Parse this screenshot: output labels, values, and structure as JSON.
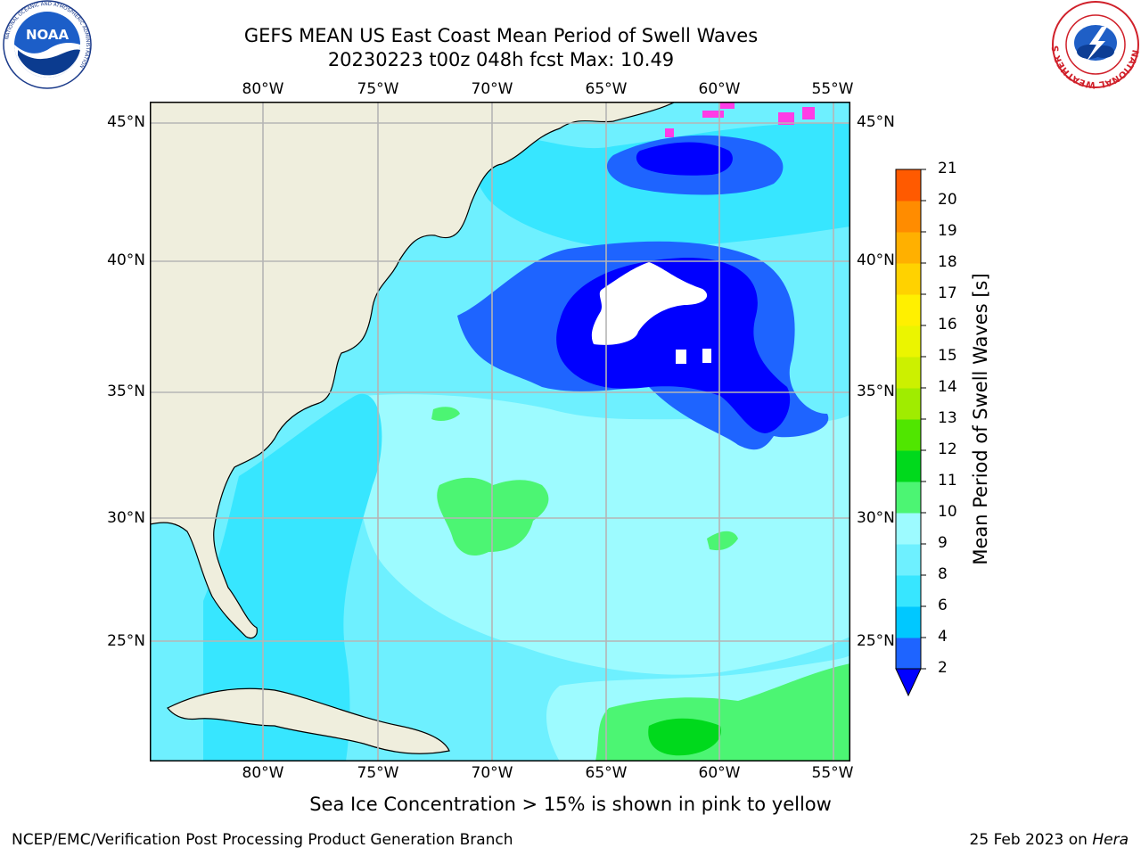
{
  "title": {
    "line1": "GEFS MEAN US East Coast Mean Period of Swell Waves",
    "line2": "20230223 t00z 048h fcst   Max: 10.49"
  },
  "map": {
    "lon_ticks": [
      "80°W",
      "75°W",
      "70°W",
      "65°W",
      "60°W",
      "55°W"
    ],
    "lat_ticks": [
      "45°N",
      "40°N",
      "35°N",
      "30°N",
      "25°N"
    ],
    "grid": true,
    "land_color": "#efeedd",
    "region": "US East Coast / Western North Atlantic"
  },
  "colorbar": {
    "label": "Mean Period of Swell Waves [s]",
    "ticks": [
      "2",
      "4",
      "6",
      "8",
      "9",
      "10",
      "11",
      "12",
      "13",
      "14",
      "15",
      "16",
      "17",
      "18",
      "19",
      "20",
      "21"
    ],
    "colors": [
      "#1e64ff",
      "#00c8ff",
      "#37e6ff",
      "#6ef0ff",
      "#9dfbff",
      "#4cf573",
      "#00d91c",
      "#50e600",
      "#a0ec00",
      "#ccf000",
      "#ebf500",
      "#fff000",
      "#ffd200",
      "#ffb000",
      "#ff8c00",
      "#ff5a00",
      "#ff2a00",
      "#ff0000"
    ],
    "extend_color": "#0000ff"
  },
  "note": "Sea Ice Concentration > 15% is shown in pink to yellow",
  "footer": {
    "left": "NCEP/EMC/Verification Post Processing Product Generation Branch",
    "right_date": "25 Feb 2023 on ",
    "right_host": "Hera"
  },
  "logos": {
    "noaa_text": "NOAA",
    "noaa_ring": "NATIONAL OCEANIC AND ATMOSPHERIC ADMINISTRATION",
    "nws_ring": "NATIONAL WEATHER SERVICE"
  }
}
